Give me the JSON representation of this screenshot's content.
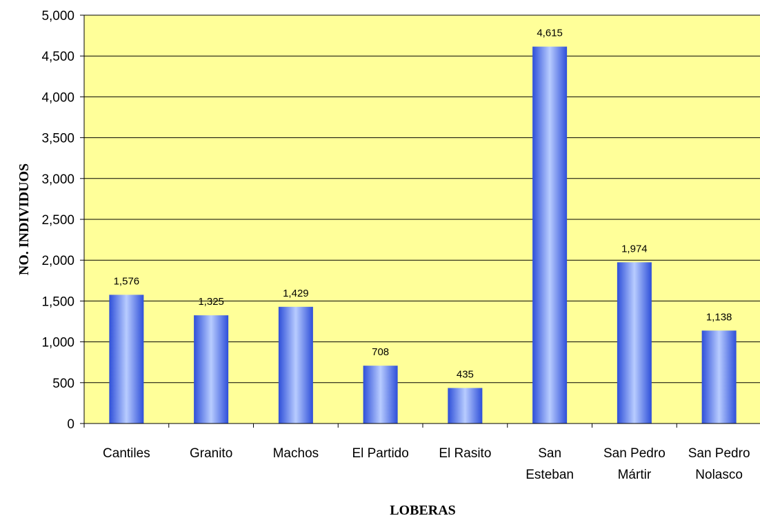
{
  "chart_data": {
    "type": "bar",
    "categories": [
      [
        "Cantiles"
      ],
      [
        "Granito"
      ],
      [
        "Machos"
      ],
      [
        "El Partido"
      ],
      [
        "El Rasito"
      ],
      [
        "San",
        "Esteban"
      ],
      [
        "San Pedro",
        "Mártir"
      ],
      [
        "San Pedro",
        "Nolasco"
      ]
    ],
    "values": [
      1576,
      1325,
      1429,
      708,
      435,
      4615,
      1974,
      1138
    ],
    "data_labels": [
      "1,576",
      "1,325",
      "1,429",
      "708",
      "435",
      "4,615",
      "1,974",
      "1,138"
    ],
    "title": "",
    "xlabel": "LOBERAS",
    "ylabel": "NO. INDIVIDUOS",
    "ylim": [
      0,
      5000
    ],
    "yticks": [
      "0",
      "500",
      "1,000",
      "1,500",
      "2,000",
      "2,500",
      "3,000",
      "3,500",
      "4,000",
      "4,500",
      "5,000"
    ],
    "grid": true,
    "legend": "none",
    "colors": {
      "plot_background": "#FFFF99",
      "bar_edge": "#2E4FD9",
      "bar_center": "#B8CCFF",
      "gridline": "#000000"
    }
  }
}
